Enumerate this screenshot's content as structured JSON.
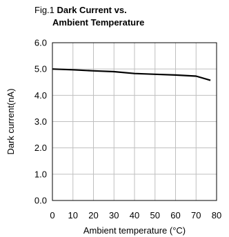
{
  "figure": {
    "fig_label": "Fig.1",
    "title_line1": "Dark Current vs.",
    "title_line2": "Ambient Temperature"
  },
  "chart_data": {
    "type": "line",
    "title": "Dark Current vs. Ambient Temperature",
    "xlabel": "Ambient temperature (°C)",
    "ylabel": "Dark current(nA)",
    "xlim": [
      0,
      80
    ],
    "ylim": [
      0.0,
      6.0
    ],
    "xticks": [
      0,
      10,
      20,
      30,
      40,
      50,
      60,
      70,
      80
    ],
    "xtick_labels": [
      "0",
      "10",
      "20",
      "30",
      "40",
      "50",
      "60",
      "70",
      "80"
    ],
    "yticks": [
      0.0,
      1.0,
      2.0,
      3.0,
      4.0,
      5.0,
      6.0
    ],
    "ytick_labels": [
      "0.0",
      "1.0",
      "2.0",
      "3.0",
      "4.0",
      "5.0",
      "6.0"
    ],
    "grid": true,
    "series": [
      {
        "x": [
          0,
          10,
          20,
          30,
          40,
          50,
          60,
          70,
          77
        ],
        "y": [
          5.0,
          4.97,
          4.93,
          4.9,
          4.83,
          4.8,
          4.77,
          4.73,
          4.57
        ]
      }
    ]
  }
}
